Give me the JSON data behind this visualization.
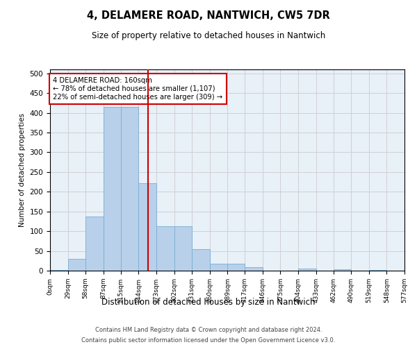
{
  "title": "4, DELAMERE ROAD, NANTWICH, CW5 7DR",
  "subtitle": "Size of property relative to detached houses in Nantwich",
  "xlabel": "Distribution of detached houses by size in Nantwich",
  "ylabel": "Number of detached properties",
  "bin_edges": [
    0,
    29,
    58,
    87,
    115,
    144,
    173,
    202,
    231,
    260,
    289,
    317,
    346,
    375,
    404,
    433,
    462,
    490,
    519,
    548,
    577
  ],
  "bin_labels": [
    "0sqm",
    "29sqm",
    "58sqm",
    "87sqm",
    "115sqm",
    "144sqm",
    "173sqm",
    "202sqm",
    "231sqm",
    "260sqm",
    "289sqm",
    "317sqm",
    "346sqm",
    "375sqm",
    "404sqm",
    "433sqm",
    "462sqm",
    "490sqm",
    "519sqm",
    "548sqm",
    "577sqm"
  ],
  "bar_heights": [
    2,
    30,
    137,
    415,
    415,
    222,
    113,
    113,
    55,
    18,
    18,
    8,
    0,
    0,
    5,
    0,
    3,
    0,
    2,
    0
  ],
  "bar_color": "#b8d0ea",
  "bar_edge_color": "#7aadd4",
  "vline_x": 160,
  "vline_color": "#cc0000",
  "annotation_text": "4 DELAMERE ROAD: 160sqm\n← 78% of detached houses are smaller (1,107)\n22% of semi-detached houses are larger (309) →",
  "annotation_box_color": "#cc0000",
  "ylim": [
    0,
    510
  ],
  "yticks": [
    0,
    50,
    100,
    150,
    200,
    250,
    300,
    350,
    400,
    450,
    500
  ],
  "grid_color": "#cccccc",
  "bg_color": "#e8f0f8",
  "footer_line1": "Contains HM Land Registry data © Crown copyright and database right 2024.",
  "footer_line2": "Contains public sector information licensed under the Open Government Licence v3.0."
}
